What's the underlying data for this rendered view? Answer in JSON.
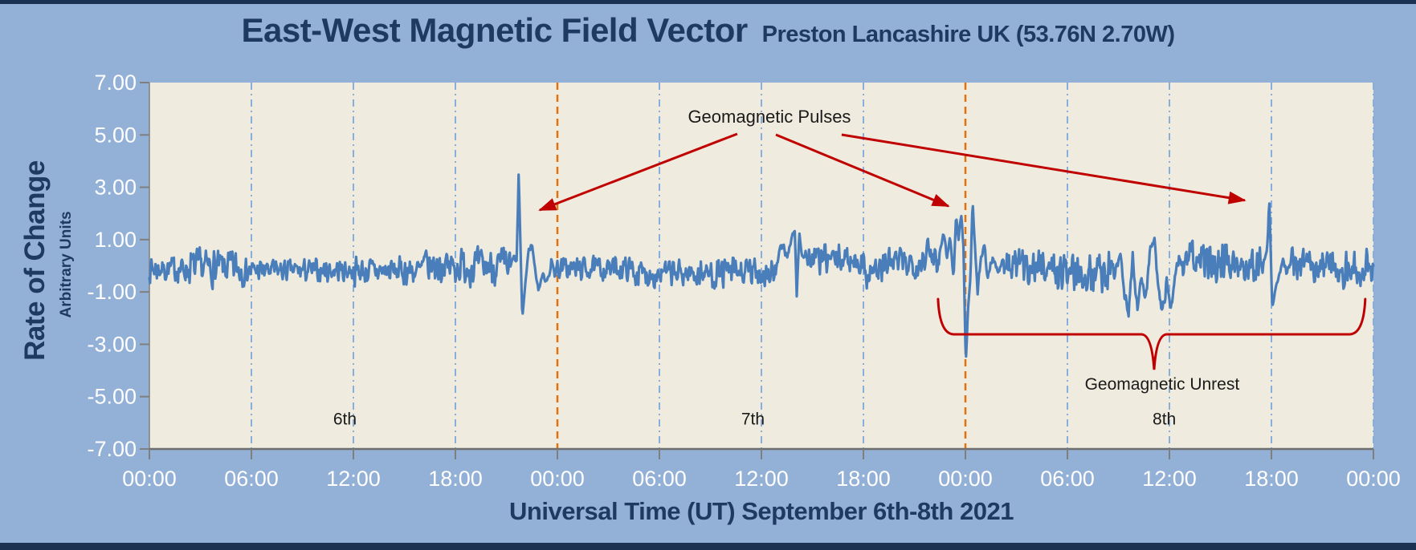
{
  "header": {
    "title": "East-West Magnetic Field Vector",
    "subtitle": "Preston Lancashire UK (53.76N 2.70W)"
  },
  "axes": {
    "y_title": "Rate of Change",
    "y_subtitle": "Arbitrary Units",
    "x_title": "Universal Time (UT) September 6th-8th 2021"
  },
  "chart_data": {
    "type": "line",
    "series_name": "east-west-magnetic-field-rate-of-change",
    "x_unit": "hours-UT",
    "x_range": [
      0,
      72
    ],
    "ylim": [
      -7,
      7
    ],
    "grid": "vertical-only",
    "x_tick_hours": [
      0,
      6,
      12,
      18,
      24,
      30,
      36,
      42,
      48,
      54,
      60,
      66,
      72
    ],
    "x_tick_labels": [
      "00:00",
      "06:00",
      "12:00",
      "18:00",
      "00:00",
      "06:00",
      "12:00",
      "18:00",
      "00:00",
      "06:00",
      "12:00",
      "18:00",
      "00:00"
    ],
    "y_ticks": [
      7,
      5,
      3,
      1,
      -1,
      -3,
      -5,
      -7
    ],
    "y_tick_labels": [
      "7.00",
      "5.00",
      "3.00",
      "1.00",
      "-1.00",
      "-3.00",
      "-5.00",
      "-7.00"
    ],
    "six_hour_gridlines_hours": [
      6,
      12,
      18,
      30,
      36,
      42,
      54,
      60,
      66,
      72
    ],
    "midnight_gridlines_hours": [
      24,
      48
    ],
    "day_labels": [
      {
        "label": "6th",
        "hour": 11.5,
        "value": -5.85
      },
      {
        "label": "7th",
        "hour": 35.5,
        "value": -5.85
      },
      {
        "label": "8th",
        "hour": 59.7,
        "value": -5.85
      }
    ],
    "noise_segments": [
      [
        0,
        2.3,
        0.42,
        -0.12
      ],
      [
        2.3,
        5.6,
        0.6,
        -0.08
      ],
      [
        5.6,
        12,
        0.36,
        -0.18
      ],
      [
        12,
        16,
        0.45,
        -0.2
      ],
      [
        16,
        21.2,
        0.58,
        -0.02
      ],
      [
        23.6,
        28.5,
        0.36,
        -0.1
      ],
      [
        28.5,
        33,
        0.44,
        -0.3
      ],
      [
        33,
        36.8,
        0.52,
        -0.28
      ],
      [
        38.6,
        41.8,
        0.46,
        0.25
      ],
      [
        41.8,
        43.2,
        0.58,
        -0.15
      ],
      [
        43.2,
        45.4,
        0.5,
        0.12
      ],
      [
        45.4,
        46.5,
        0.55,
        0.4
      ],
      [
        50.2,
        53,
        0.55,
        0.0
      ],
      [
        53,
        56.8,
        0.68,
        -0.2
      ],
      [
        60.6,
        63.5,
        0.66,
        0.2
      ],
      [
        63.5,
        65.55,
        0.55,
        0.1
      ],
      [
        67.1,
        69.5,
        0.52,
        0.05
      ],
      [
        69.5,
        72,
        0.56,
        -0.12
      ]
    ],
    "events": [
      {
        "name": "pulse-1",
        "jitter": 0.1,
        "points": [
          [
            21.2,
            -0.1
          ],
          [
            21.45,
            0.35
          ],
          [
            21.6,
            0.1
          ],
          [
            21.72,
            3.45
          ],
          [
            21.82,
            1.0
          ],
          [
            21.93,
            -2.05
          ],
          [
            22.1,
            -0.75
          ],
          [
            22.3,
            0.55
          ],
          [
            22.5,
            0.85
          ],
          [
            22.7,
            -0.2
          ],
          [
            22.9,
            -0.95
          ],
          [
            23.1,
            -0.35
          ],
          [
            23.35,
            -0.55
          ],
          [
            23.6,
            -0.15
          ]
        ]
      },
      {
        "name": "day7-activity-burst",
        "jitter": 0.15,
        "points": [
          [
            36.8,
            -0.5
          ],
          [
            37.0,
            0.35
          ],
          [
            37.25,
            0.8
          ],
          [
            37.5,
            0.4
          ],
          [
            37.75,
            0.9
          ],
          [
            37.95,
            1.45
          ],
          [
            38.08,
            -1.1
          ],
          [
            38.22,
            1.2
          ],
          [
            38.4,
            0.35
          ],
          [
            38.6,
            0.55
          ]
        ]
      },
      {
        "name": "pulse-2-storm-onset",
        "jitter": 0.12,
        "points": [
          [
            46.5,
            0.5
          ],
          [
            46.7,
            1.4
          ],
          [
            46.9,
            0.35
          ],
          [
            47.1,
            1.1
          ],
          [
            47.3,
            -0.45
          ],
          [
            47.45,
            1.85
          ],
          [
            47.6,
            1.1
          ],
          [
            47.75,
            1.95
          ],
          [
            47.88,
            0.8
          ],
          [
            48.02,
            -3.7
          ],
          [
            48.18,
            -1.4
          ],
          [
            48.3,
            -0.4
          ],
          [
            48.42,
            2.5
          ],
          [
            48.55,
            0.9
          ],
          [
            48.72,
            -0.95
          ],
          [
            48.9,
            0.2
          ],
          [
            49.1,
            0.85
          ],
          [
            49.3,
            -0.45
          ],
          [
            49.6,
            0.35
          ],
          [
            49.9,
            -0.2
          ],
          [
            50.2,
            0.1
          ]
        ]
      },
      {
        "name": "unrest-deep-dips",
        "jitter": 0.25,
        "points": [
          [
            56.8,
            -0.2
          ],
          [
            57.1,
            0.6
          ],
          [
            57.35,
            -1.1
          ],
          [
            57.6,
            -1.65
          ],
          [
            57.85,
            0.3
          ],
          [
            58.1,
            -1.75
          ],
          [
            58.35,
            -0.45
          ],
          [
            58.6,
            -1.35
          ],
          [
            58.85,
            0.55
          ],
          [
            59.1,
            1.1
          ],
          [
            59.35,
            -0.95
          ],
          [
            59.6,
            -1.85
          ],
          [
            59.85,
            -0.5
          ],
          [
            60.1,
            -1.6
          ],
          [
            60.35,
            -0.3
          ],
          [
            60.6,
            0.35
          ]
        ]
      },
      {
        "name": "pulse-3",
        "jitter": 0.1,
        "points": [
          [
            65.55,
            0.2
          ],
          [
            65.7,
            0.5
          ],
          [
            65.78,
            1.0
          ],
          [
            65.87,
            2.7
          ],
          [
            66.05,
            -1.55
          ],
          [
            66.3,
            -0.75
          ],
          [
            66.5,
            -0.2
          ],
          [
            66.7,
            0.25
          ],
          [
            66.9,
            -0.3
          ],
          [
            67.1,
            0.0
          ]
        ]
      }
    ],
    "annotations": {
      "pulses_label": {
        "text": "Geomagnetic Pulses",
        "hour": 36.47,
        "value": 5.71
      },
      "unrest_label": {
        "text": "Geomagnetic Unrest",
        "hour": 59.57,
        "value": -4.49
      },
      "arrows": [
        {
          "from_hour": 34.58,
          "from_value": 5.04,
          "to_hour": 22.96,
          "to_value": 2.13
        },
        {
          "from_hour": 36.85,
          "from_value": 5.01,
          "to_hour": 47.0,
          "to_value": 2.28
        },
        {
          "from_hour": 40.72,
          "from_value": 5.01,
          "to_hour": 64.43,
          "to_value": 2.5
        }
      ],
      "brace": {
        "from_hour": 46.39,
        "to_hour": 71.52,
        "notch_hour": 59.1,
        "line_value": -2.62,
        "end_value": -1.27,
        "notch_value": -3.97
      }
    },
    "colors": {
      "background": "#93b0d7",
      "edge_band": "#1b3151",
      "title_text": "#1f3a60",
      "plot_background": "#efecdf",
      "series_line": "#4a7ebb",
      "gridline_blue": "#87aedd",
      "gridline_orange": "#e2700e",
      "annotation_red": "#c00000",
      "axis_gray": "#7f7f7f",
      "tick_label_text": "#ffffff",
      "annotation_text": "#1a1a1a"
    },
    "rng_seed": 7
  }
}
